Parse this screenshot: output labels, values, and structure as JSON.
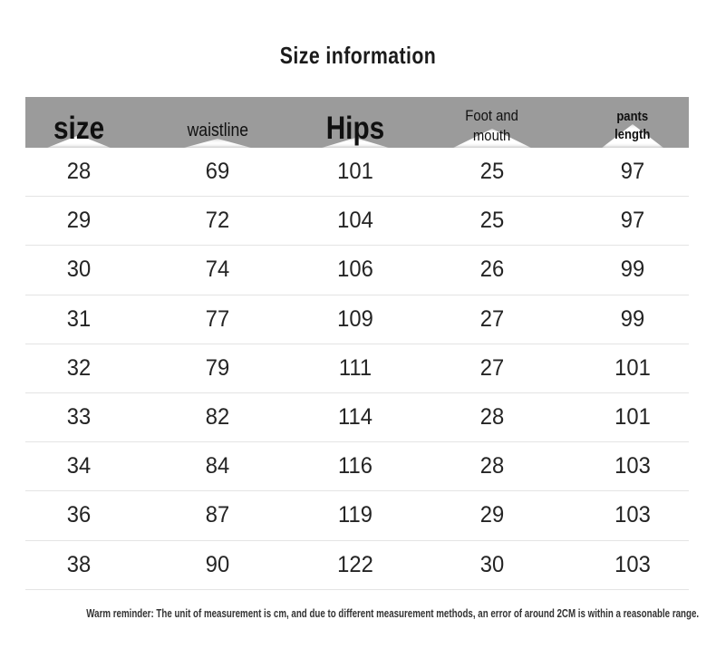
{
  "page": {
    "title": "Size information",
    "reminder": "Warm reminder: The unit of measurement is cm, and due to different measurement methods, an error of around 2CM is within a reasonable range."
  },
  "header": {
    "labels": [
      "size",
      "waistline",
      "Hips",
      "Foot and\nmouth",
      "pants\nlength"
    ]
  },
  "chart_data": {
    "type": "table",
    "title": "Size information",
    "columns": [
      "size",
      "waistline",
      "Hips",
      "Foot and mouth",
      "pants length"
    ],
    "rows": [
      [
        28,
        69,
        101,
        25,
        97
      ],
      [
        29,
        72,
        104,
        25,
        97
      ],
      [
        30,
        74,
        106,
        26,
        99
      ],
      [
        31,
        77,
        109,
        27,
        99
      ],
      [
        32,
        79,
        111,
        27,
        101
      ],
      [
        33,
        82,
        114,
        28,
        101
      ],
      [
        34,
        84,
        116,
        28,
        103
      ],
      [
        36,
        87,
        119,
        29,
        103
      ],
      [
        38,
        90,
        122,
        30,
        103
      ]
    ],
    "note": "Warm reminder: The unit of measurement is cm, and due to different measurement methods, an error of around 2CM is within a reasonable range.",
    "layout": {
      "legend": "none",
      "grid": "horizontal-row-dividers",
      "header_style": "gray-band-with-white-triangle-peaks"
    }
  },
  "colors": {
    "header_bg": "#9b9b9b",
    "title_text": "#1b1b1b",
    "cell_text": "#242424",
    "divider": "#e4e4e4",
    "reminder_text": "#333333"
  }
}
